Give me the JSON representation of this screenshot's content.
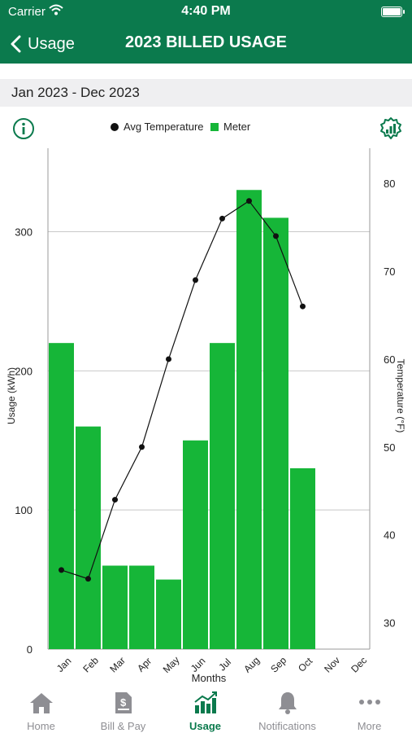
{
  "status_bar": {
    "carrier": "Carrier",
    "time": "4:40 PM"
  },
  "nav": {
    "back_label": "Usage",
    "title": "2023 BILLED USAGE"
  },
  "range": {
    "label": "Jan 2023 - Dec 2023"
  },
  "legend": {
    "temperature_label": "Avg Temperature",
    "meter_label": "Meter"
  },
  "colors": {
    "brand": "#0b7a4d",
    "bar": "#16b638",
    "line": "#111111"
  },
  "chart_data": {
    "type": "bar",
    "categories": [
      "Jan",
      "Feb",
      "Mar",
      "Apr",
      "May",
      "Jun",
      "Jul",
      "Aug",
      "Sep",
      "Oct",
      "Nov",
      "Dec"
    ],
    "series": [
      {
        "name": "Meter",
        "type": "bar",
        "axis": "left",
        "values": [
          220,
          160,
          60,
          60,
          50,
          150,
          220,
          330,
          310,
          130,
          null,
          null
        ]
      },
      {
        "name": "Avg Temperature",
        "type": "line",
        "axis": "right",
        "values": [
          36,
          35,
          44,
          50,
          60,
          69,
          76,
          78,
          74,
          66,
          null,
          null
        ]
      }
    ],
    "xlabel": "Months",
    "ylabel": "Usage (kWh)",
    "y2label": "Temperature (°F)",
    "ylim": [
      0,
      360
    ],
    "yticks": [
      0,
      100,
      200,
      300
    ],
    "y2lim": [
      27,
      84
    ],
    "y2ticks": [
      30,
      40,
      50,
      60,
      70,
      80
    ],
    "grid": true,
    "legend_position": "top"
  },
  "tabs": [
    {
      "label": "Home",
      "icon": "home-icon",
      "active": false
    },
    {
      "label": "Bill & Pay",
      "icon": "bill-icon",
      "active": false
    },
    {
      "label": "Usage",
      "icon": "usage-icon",
      "active": true
    },
    {
      "label": "Notifications",
      "icon": "bell-icon",
      "active": false
    },
    {
      "label": "More",
      "icon": "more-icon",
      "active": false
    }
  ]
}
